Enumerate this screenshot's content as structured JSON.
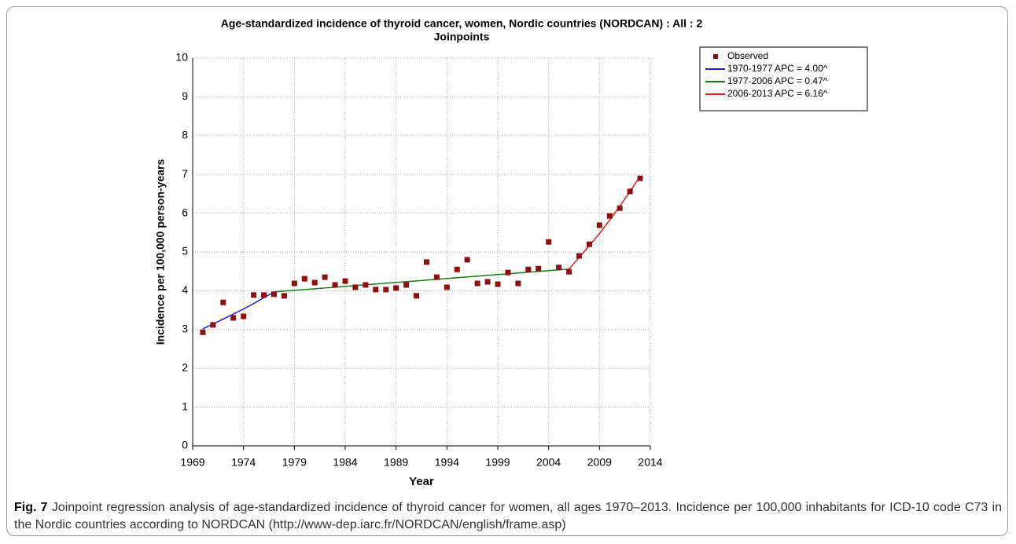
{
  "chart_data": {
    "type": "scatter",
    "title": [
      "Age-standardized incidence of thyroid cancer, women, Nordic countries (NORDCAN) : All : 2",
      "Joinpoints"
    ],
    "xlabel": "Year",
    "ylabel": "Incidence per 100,000 person-years",
    "xlim": [
      1969,
      2014
    ],
    "xticks": [
      1969,
      1974,
      1979,
      1984,
      1989,
      1994,
      1999,
      2004,
      2009,
      2014
    ],
    "ylim": [
      0,
      10
    ],
    "yticks": [
      0,
      1,
      2,
      3,
      4,
      5,
      6,
      7,
      8,
      9,
      10
    ],
    "grid": true,
    "legend": "upper right",
    "observed": {
      "name": "Observed",
      "color": "#8b1010",
      "x": [
        1970,
        1971,
        1972,
        1973,
        1974,
        1975,
        1976,
        1977,
        1978,
        1979,
        1980,
        1981,
        1982,
        1983,
        1984,
        1985,
        1986,
        1987,
        1988,
        1989,
        1990,
        1991,
        1992,
        1993,
        1994,
        1995,
        1996,
        1997,
        1998,
        1999,
        2000,
        2001,
        2002,
        2003,
        2004,
        2005,
        2006,
        2007,
        2008,
        2009,
        2010,
        2011,
        2012,
        2013
      ],
      "values": [
        2.93,
        3.12,
        3.7,
        3.3,
        3.34,
        3.89,
        3.89,
        3.91,
        3.87,
        4.19,
        4.31,
        4.21,
        4.35,
        4.15,
        4.25,
        4.09,
        4.15,
        4.03,
        4.03,
        4.07,
        4.15,
        3.87,
        4.74,
        4.35,
        4.09,
        4.55,
        4.8,
        4.19,
        4.23,
        4.17,
        4.47,
        4.19,
        4.55,
        4.57,
        5.26,
        4.6,
        4.49,
        4.9,
        5.2,
        5.69,
        5.93,
        6.13,
        6.56,
        6.9
      ]
    },
    "series": [
      {
        "name": "1970-1977 APC = 4.00^",
        "color": "#2020e0",
        "x": [
          1970,
          1971,
          1972,
          1973,
          1974,
          1975,
          1976,
          1977
        ],
        "values": [
          3.02,
          3.14,
          3.27,
          3.4,
          3.53,
          3.67,
          3.82,
          3.97
        ]
      },
      {
        "name": "1977-2006 APC = 0.47^",
        "color": "#1a7a1a",
        "x": [
          1977,
          2006
        ],
        "values": [
          3.97,
          4.56
        ]
      },
      {
        "name": "2006-2013 APC = 6.16^",
        "color": "#e02020",
        "x": [
          2006,
          2007,
          2008,
          2009,
          2010,
          2011,
          2012,
          2013
        ],
        "values": [
          4.56,
          4.86,
          5.16,
          5.48,
          5.82,
          6.18,
          6.56,
          6.96
        ]
      }
    ]
  },
  "caption": {
    "label": "Fig. 7",
    "text": "Joinpoint regression analysis of age-standardized incidence of thyroid cancer for women, all ages 1970–2013. Incidence per 100,000 inhabitants for ICD-10 code C73 in the Nordic countries according to NORDCAN (http://www-dep.iarc.fr/NORDCAN/english/frame.asp)"
  }
}
